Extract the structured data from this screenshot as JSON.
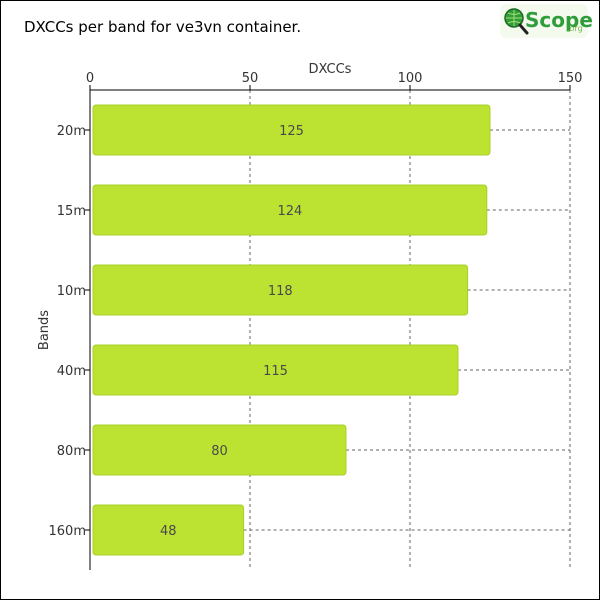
{
  "colors": {
    "bar": "#bde332",
    "bar_stroke": "#a9cf2a",
    "grid": "#666666",
    "axis": "#000000",
    "logo_green": "#2e9d3a"
  },
  "logo": {
    "icon": "magnifier-globe-icon",
    "text": "Scope",
    "suffix": ".org"
  },
  "chart_data": {
    "type": "bar",
    "orientation": "horizontal",
    "title": "DXCCs per band for ve3vn container.",
    "xlabel": "DXCCs",
    "ylabel": "Bands",
    "x_axis_position": "top",
    "xlim": [
      0,
      150
    ],
    "xticks": [
      0,
      50,
      100,
      150
    ],
    "grid": true,
    "categories": [
      "20m",
      "15m",
      "10m",
      "40m",
      "80m",
      "160m"
    ],
    "values": [
      125,
      124,
      118,
      115,
      80,
      48
    ]
  }
}
